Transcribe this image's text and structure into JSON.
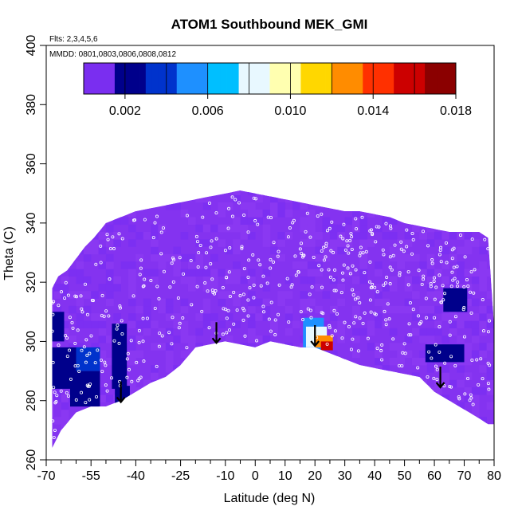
{
  "chart_data": {
    "type": "heatmap",
    "title": "ATOM1 Southbound MEK_GMI",
    "xlabel": "Latitude (deg N)",
    "ylabel": "Theta (C)",
    "flights_note": "Flts: 2,3,4,5,6",
    "dates_note": "MMDD: 0801,0803,0806,0808,0812",
    "xlim": [
      -70,
      80
    ],
    "ylim": [
      260,
      400
    ],
    "x_ticks_major": [
      -70,
      -55,
      -40,
      -25,
      -10,
      0,
      10,
      20,
      30,
      40,
      50,
      60,
      70,
      80
    ],
    "x_ticks_minor": [
      -65,
      -60,
      -50,
      -45,
      -35,
      -30,
      -20,
      -15,
      -5,
      5,
      15,
      25,
      35,
      45,
      55,
      65,
      75
    ],
    "y_ticks": [
      260,
      280,
      300,
      320,
      340,
      360,
      380,
      400
    ],
    "colorbar": {
      "range": [
        0,
        0.018
      ],
      "tick_values": [
        0.002,
        0.006,
        0.01,
        0.014,
        0.018
      ],
      "tick_labels": [
        "0.002",
        "0.006",
        "0.010",
        "0.014",
        "0.018"
      ],
      "segment_bounds": [
        0.002,
        0.004,
        0.006,
        0.008,
        0.01,
        0.012,
        0.014,
        0.016,
        0.018
      ],
      "colors": [
        "#7a2ef0",
        "#00008b",
        "#0033cc",
        "#1e90ff",
        "#00bfff",
        "#e8f8ff",
        "#ffffb0",
        "#ffd700",
        "#ff8c00",
        "#ff3000",
        "#cc0000",
        "#8b0000"
      ]
    },
    "background_value": 0.0005,
    "background_color": "#8433f0",
    "coverage_top": [
      [
        -68,
        318
      ],
      [
        -66,
        322
      ],
      [
        -63,
        324
      ],
      [
        -60,
        328
      ],
      [
        -57,
        332
      ],
      [
        -54,
        335
      ],
      [
        -50,
        340
      ],
      [
        -45,
        342
      ],
      [
        -40,
        344
      ],
      [
        -35,
        345
      ],
      [
        -30,
        346
      ],
      [
        -25,
        347
      ],
      [
        -20,
        348
      ],
      [
        -15,
        349
      ],
      [
        -10,
        350
      ],
      [
        -5,
        351
      ],
      [
        0,
        350
      ],
      [
        5,
        349
      ],
      [
        10,
        348
      ],
      [
        15,
        347
      ],
      [
        20,
        346
      ],
      [
        25,
        345
      ],
      [
        30,
        344
      ],
      [
        35,
        344
      ],
      [
        40,
        343
      ],
      [
        45,
        342
      ],
      [
        50,
        340
      ],
      [
        55,
        339
      ],
      [
        60,
        338
      ],
      [
        65,
        337
      ],
      [
        70,
        337
      ],
      [
        75,
        337
      ],
      [
        78,
        335
      ],
      [
        79,
        320
      ],
      [
        80,
        305
      ],
      [
        80,
        272
      ]
    ],
    "coverage_bottom": [
      [
        -68,
        264
      ],
      [
        -65,
        270
      ],
      [
        -60,
        276
      ],
      [
        -55,
        278
      ],
      [
        -50,
        278
      ],
      [
        -45,
        280
      ],
      [
        -40,
        283
      ],
      [
        -35,
        286
      ],
      [
        -30,
        288
      ],
      [
        -25,
        292
      ],
      [
        -20,
        298
      ],
      [
        -15,
        299
      ],
      [
        -10,
        300
      ],
      [
        -5,
        299
      ],
      [
        0,
        298
      ],
      [
        5,
        300
      ],
      [
        10,
        299
      ],
      [
        15,
        298
      ],
      [
        20,
        298
      ],
      [
        25,
        296
      ],
      [
        30,
        294
      ],
      [
        35,
        292
      ],
      [
        40,
        291
      ],
      [
        45,
        290
      ],
      [
        50,
        289
      ],
      [
        55,
        288
      ],
      [
        60,
        283
      ],
      [
        65,
        280
      ],
      [
        70,
        277
      ],
      [
        75,
        274
      ],
      [
        78,
        272
      ]
    ],
    "enhanced_cells": [
      {
        "lon": [
          -68,
          -58
        ],
        "theta": [
          284,
          298
        ],
        "value": 0.0025
      },
      {
        "lon": [
          -62,
          -52
        ],
        "theta": [
          278,
          290
        ],
        "value": 0.0025
      },
      {
        "lon": [
          -60,
          -52
        ],
        "theta": [
          290,
          298
        ],
        "value": 0.003
      },
      {
        "lon": [
          -48,
          -43
        ],
        "theta": [
          284,
          306
        ],
        "value": 0.0025
      },
      {
        "lon": [
          -47,
          -42
        ],
        "theta": [
          278,
          285
        ],
        "value": 0.0022
      },
      {
        "lon": [
          -68,
          -64
        ],
        "theta": [
          300,
          310
        ],
        "value": 0.0022
      },
      {
        "lon": [
          57,
          70
        ],
        "theta": [
          293,
          299
        ],
        "value": 0.0025
      },
      {
        "lon": [
          63,
          71
        ],
        "theta": [
          310,
          318
        ],
        "value": 0.0022
      },
      {
        "lon": [
          16,
          23
        ],
        "theta": [
          296,
          308
        ],
        "value": 0.0045
      },
      {
        "lon": [
          17,
          24
        ],
        "theta": [
          298,
          305
        ],
        "value": 0.008
      },
      {
        "lon": [
          20,
          26
        ],
        "theta": [
          298,
          302
        ],
        "value": 0.012
      },
      {
        "lon": [
          22,
          26
        ],
        "theta": [
          297,
          300
        ],
        "value": 0.016
      }
    ],
    "arrows": [
      [
        -45,
        283
      ],
      [
        -13,
        303
      ],
      [
        20,
        302
      ],
      [
        62,
        288
      ]
    ]
  }
}
